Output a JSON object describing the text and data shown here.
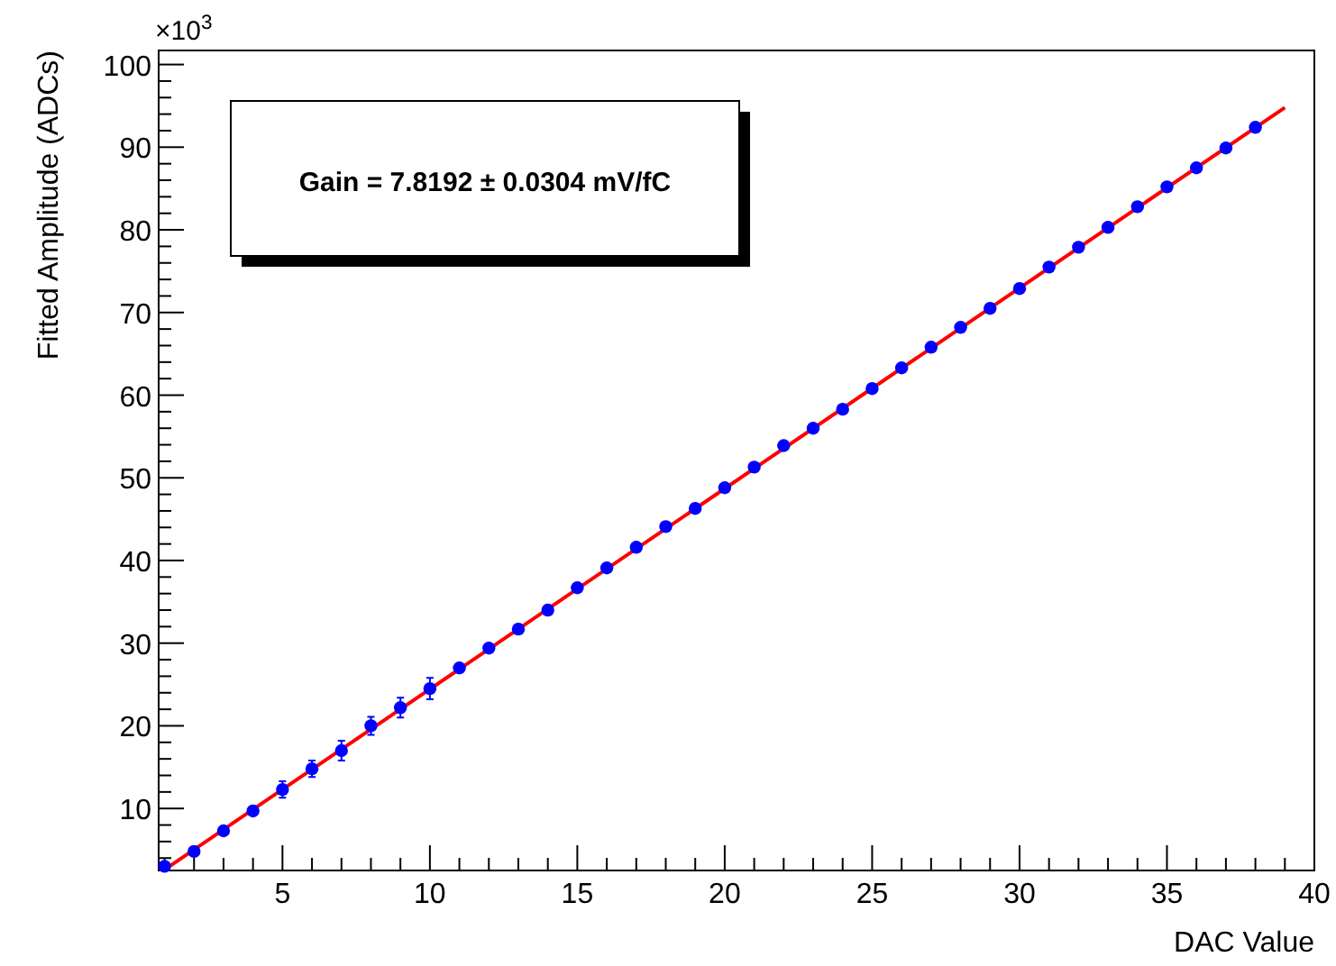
{
  "chart_data": {
    "type": "scatter",
    "xlabel": "DAC Value",
    "ylabel": "Fitted Amplitude (ADCs)",
    "annotations": [
      "×10$^{3}$",
      "Gain = 7.8192 ± 0.0304 mV/fC"
    ],
    "xlim": [
      0.8,
      40
    ],
    "ylim": [
      2.5,
      101.7
    ],
    "xticks": [
      {
        "value": 1,
        "label": null
      },
      {
        "value": 2,
        "label": null
      },
      {
        "value": 3,
        "label": null
      },
      {
        "value": 4,
        "label": null
      },
      5,
      {
        "value": 6,
        "label": null
      },
      {
        "value": 7,
        "label": null
      },
      {
        "value": 8,
        "label": null
      },
      {
        "value": 9,
        "label": null
      },
      10,
      {
        "value": 11,
        "label": null
      },
      {
        "value": 12,
        "label": null
      },
      {
        "value": 13,
        "label": null
      },
      {
        "value": 14,
        "label": null
      },
      15,
      {
        "value": 16,
        "label": null
      },
      {
        "value": 17,
        "label": null
      },
      {
        "value": 18,
        "label": null
      },
      {
        "value": 19,
        "label": null
      },
      20,
      {
        "value": 21,
        "label": null
      },
      {
        "value": 22,
        "label": null
      },
      {
        "value": 23,
        "label": null
      },
      {
        "value": 24,
        "label": null
      },
      25,
      {
        "value": 26,
        "label": null
      },
      {
        "value": 27,
        "label": null
      },
      {
        "value": 28,
        "label": null
      },
      {
        "value": 29,
        "label": null
      },
      30,
      {
        "value": 31,
        "label": null
      },
      {
        "value": 32,
        "label": null
      },
      {
        "value": 33,
        "label": null
      },
      {
        "value": 34,
        "label": null
      },
      35,
      {
        "value": 36,
        "label": null
      },
      {
        "value": 37,
        "label": null
      },
      {
        "value": 38,
        "label": null
      },
      {
        "value": 39,
        "label": null
      },
      40
    ],
    "yticks": [
      {
        "value": 4,
        "label": null
      },
      {
        "value": 6,
        "label": null
      },
      {
        "value": 8,
        "label": null
      },
      10,
      {
        "value": 12,
        "label": null
      },
      {
        "value": 14,
        "label": null
      },
      {
        "value": 16,
        "label": null
      },
      {
        "value": 18,
        "label": null
      },
      20,
      {
        "value": 22,
        "label": null
      },
      {
        "value": 24,
        "label": null
      },
      {
        "value": 26,
        "label": null
      },
      {
        "value": 28,
        "label": null
      },
      30,
      {
        "value": 32,
        "label": null
      },
      {
        "value": 34,
        "label": null
      },
      {
        "value": 36,
        "label": null
      },
      {
        "value": 38,
        "label": null
      },
      40,
      {
        "value": 42,
        "label": null
      },
      {
        "value": 44,
        "label": null
      },
      {
        "value": 46,
        "label": null
      },
      {
        "value": 48,
        "label": null
      },
      50,
      {
        "value": 52,
        "label": null
      },
      {
        "value": 54,
        "label": null
      },
      {
        "value": 56,
        "label": null
      },
      {
        "value": 58,
        "label": null
      },
      60,
      {
        "value": 62,
        "label": null
      },
      {
        "value": 64,
        "label": null
      },
      {
        "value": 66,
        "label": null
      },
      {
        "value": 68,
        "label": null
      },
      70,
      {
        "value": 72,
        "label": null
      },
      {
        "value": 74,
        "label": null
      },
      {
        "value": 76,
        "label": null
      },
      {
        "value": 78,
        "label": null
      },
      80,
      {
        "value": 82,
        "label": null
      },
      {
        "value": 84,
        "label": null
      },
      {
        "value": 86,
        "label": null
      },
      {
        "value": 88,
        "label": null
      },
      90,
      {
        "value": 92,
        "label": null
      },
      {
        "value": 94,
        "label": null
      },
      {
        "value": 96,
        "label": null
      },
      {
        "value": 98,
        "label": null
      },
      100
    ],
    "grid": false,
    "marker": "circle",
    "series": [
      {
        "color": "#0000ff",
        "x": [
          1,
          2,
          3,
          4,
          5,
          6,
          7,
          8,
          9,
          10,
          11,
          12,
          13,
          14,
          15,
          16,
          17,
          18,
          19,
          20,
          21,
          22,
          23,
          24,
          25,
          26,
          27,
          28,
          29,
          30,
          31,
          32,
          33,
          34,
          35,
          36,
          37,
          38
        ],
        "values": [
          3.0,
          4.8,
          7.3,
          9.7,
          12.3,
          14.8,
          17.0,
          20.0,
          22.2,
          24.5,
          27.0,
          29.4,
          31.7,
          34.0,
          36.7,
          39.1,
          41.6,
          44.1,
          46.3,
          48.8,
          51.3,
          53.9,
          56.0,
          58.3,
          60.8,
          63.3,
          65.8,
          68.2,
          70.5,
          72.9,
          75.5,
          77.9,
          80.3,
          82.8,
          85.2,
          87.5,
          89.9,
          92.4
        ],
        "errors": [
          null,
          null,
          null,
          null,
          1.0,
          1.0,
          1.2,
          1.1,
          1.2,
          1.3,
          null,
          null,
          null,
          null,
          null,
          null,
          null,
          null,
          null,
          null,
          null,
          null,
          null,
          null,
          null,
          null,
          null,
          null,
          null,
          null,
          null,
          null,
          null,
          null,
          null,
          null,
          null,
          null
        ]
      },
      {
        "type": "line",
        "color": "#ff0000",
        "x": [
          1,
          39
        ],
        "values": [
          2.6,
          94.8
        ],
        "line_style": "solid",
        "marker": "none"
      }
    ]
  }
}
